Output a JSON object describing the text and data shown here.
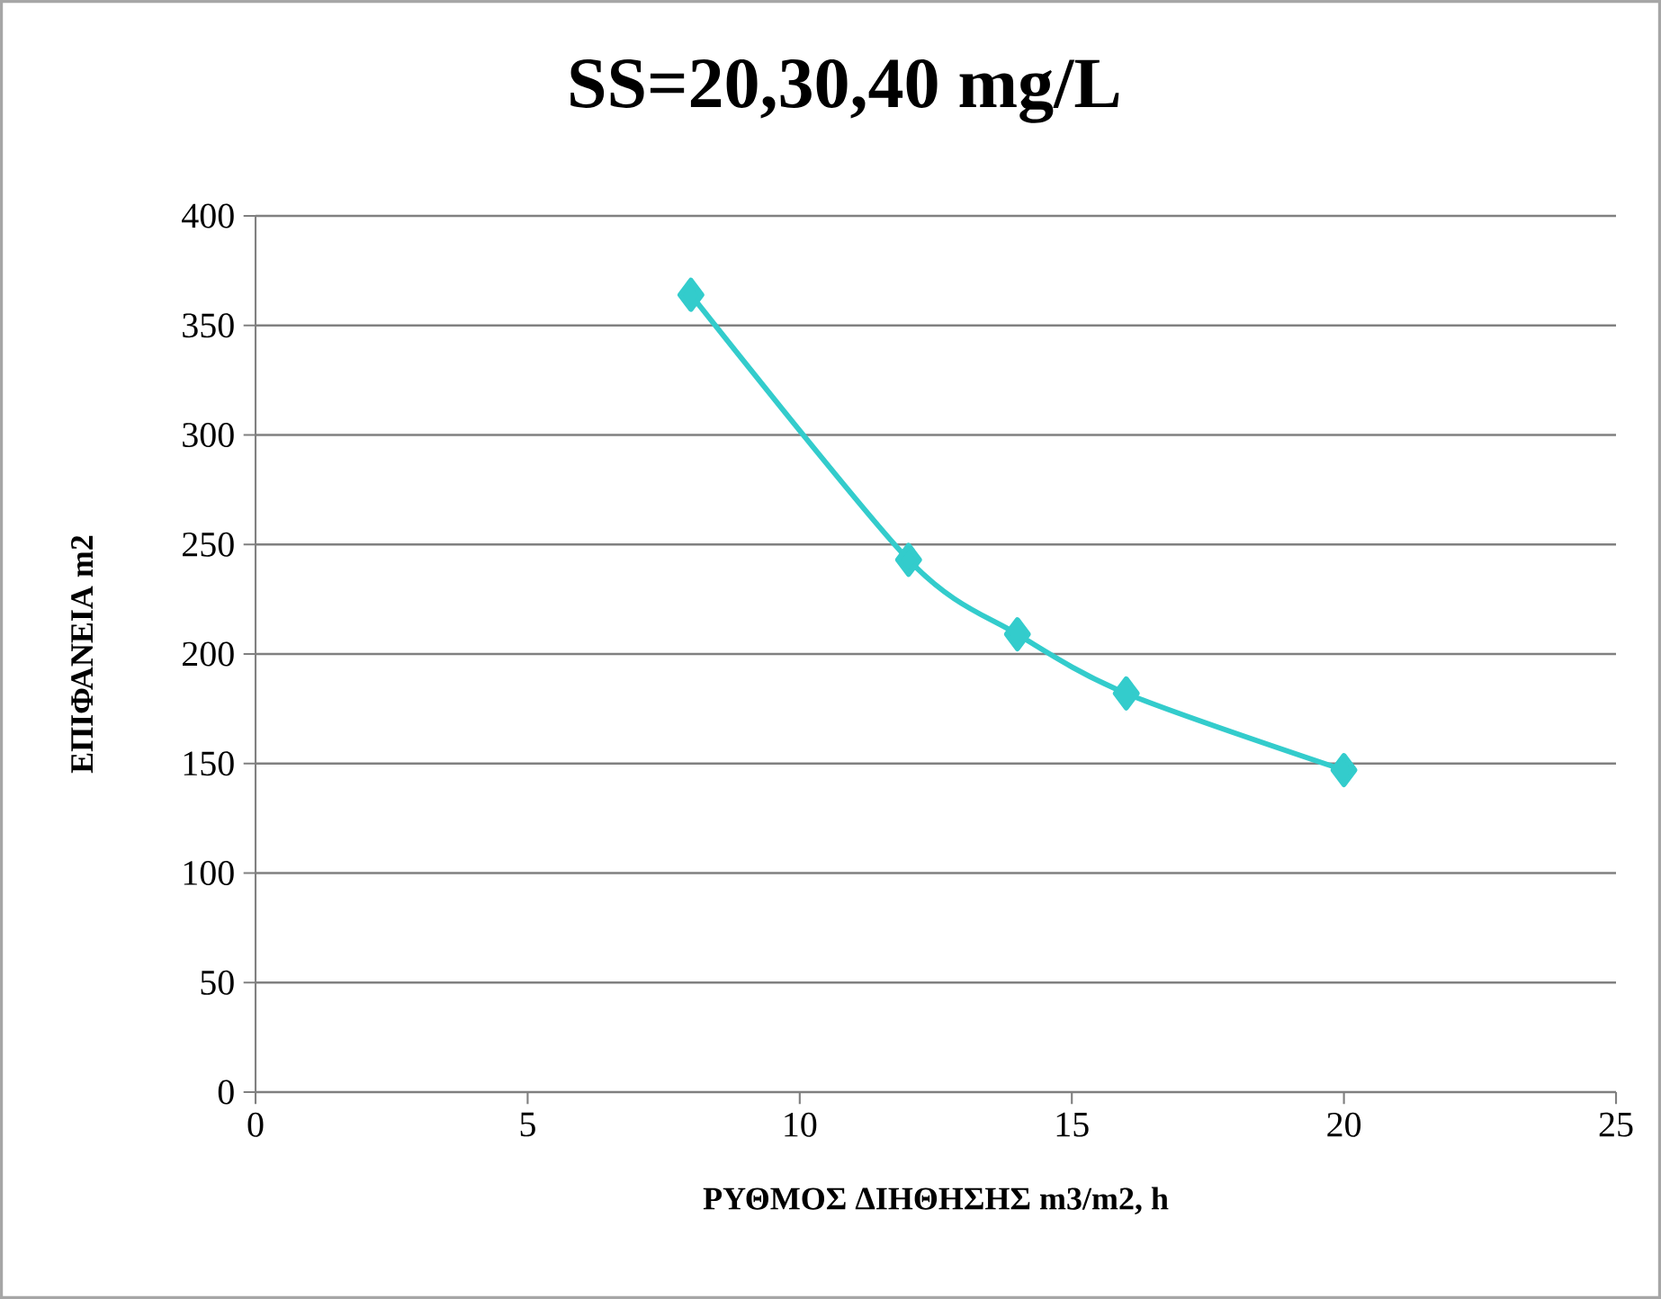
{
  "chart_data": {
    "type": "line",
    "title": "SS=20,30,40 mg/L",
    "xlabel": "ΡΥΘΜΟΣ ΔΙΗΘΗΣΗΣ m3/m2, h",
    "ylabel": "ΕΠΙΦΑΝΕΙΑ m2",
    "x": [
      8,
      12,
      14,
      16,
      20
    ],
    "series": [
      {
        "color": "#33cccc",
        "values": [
          364,
          243,
          209,
          182,
          147
        ]
      }
    ],
    "xlim": [
      0,
      25
    ],
    "xticks": [
      0,
      5,
      10,
      15,
      20,
      25
    ],
    "ylim": [
      0,
      400
    ],
    "yticks": [
      0,
      50,
      100,
      150,
      200,
      250,
      300,
      350,
      400
    ],
    "grid": "y",
    "marker": "diamond",
    "line_style": "solid"
  }
}
